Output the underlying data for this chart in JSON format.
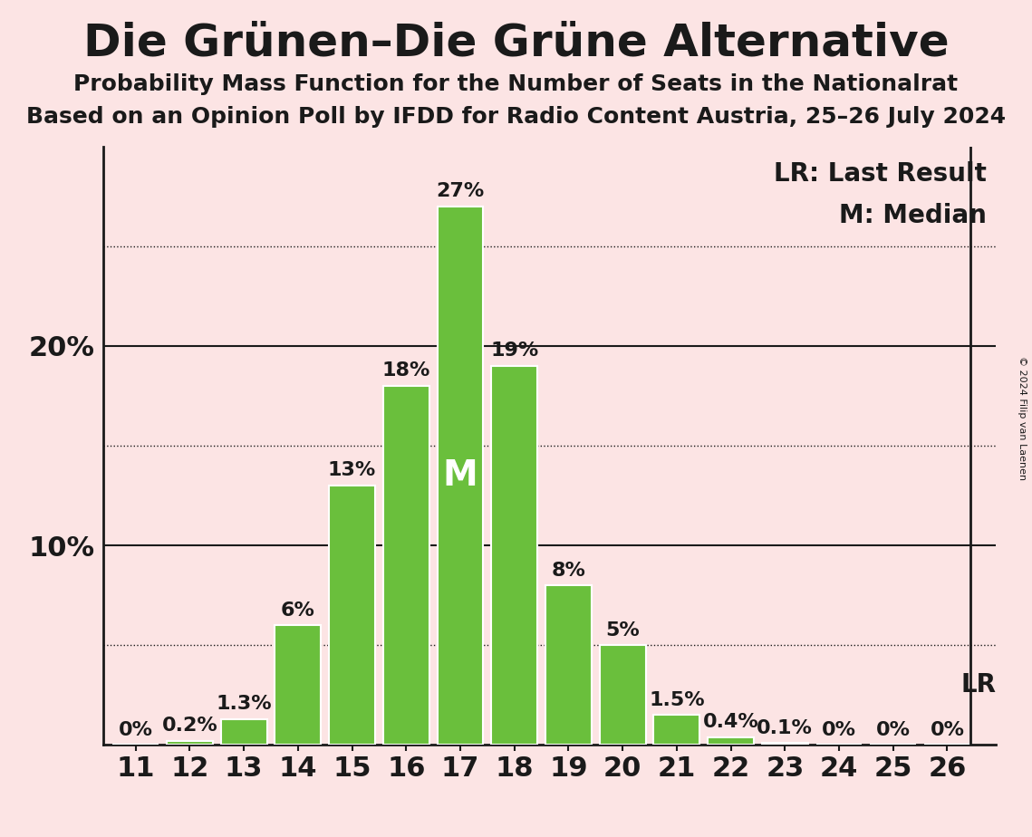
{
  "title": "Die Grünen–Die Grüne Alternative",
  "subtitle1": "Probability Mass Function for the Number of Seats in the Nationalrat",
  "subtitle2": "Based on an Opinion Poll by IFDD for Radio Content Austria, 25–26 July 2024",
  "copyright": "© 2024 Filip van Laenen",
  "seats": [
    11,
    12,
    13,
    14,
    15,
    16,
    17,
    18,
    19,
    20,
    21,
    22,
    23,
    24,
    25,
    26
  ],
  "probabilities": [
    0.0,
    0.2,
    1.3,
    6.0,
    13.0,
    18.0,
    27.0,
    19.0,
    8.0,
    5.0,
    1.5,
    0.4,
    0.1,
    0.0,
    0.0,
    0.0
  ],
  "labels": [
    "0%",
    "0.2%",
    "1.3%",
    "6%",
    "13%",
    "18%",
    "27%",
    "19%",
    "8%",
    "5%",
    "1.5%",
    "0.4%",
    "0.1%",
    "0%",
    "0%",
    "0%"
  ],
  "bar_color": "#6abf3c",
  "background_color": "#fce4e4",
  "median_seat": 17,
  "lr_seat": 26,
  "lr_label": "LR",
  "median_label": "M",
  "ylim": [
    0,
    30
  ],
  "solid_gridlines": [
    10,
    20
  ],
  "dotted_gridlines": [
    5,
    15,
    25
  ],
  "legend_lr": "LR: Last Result",
  "legend_m": "M: Median",
  "bar_edge_color": "white",
  "axis_color": "#1a1a1a",
  "title_fontsize": 36,
  "subtitle_fontsize": 18,
  "tick_fontsize": 22,
  "label_fontsize": 16,
  "legend_fontsize": 20,
  "median_fontsize": 28
}
